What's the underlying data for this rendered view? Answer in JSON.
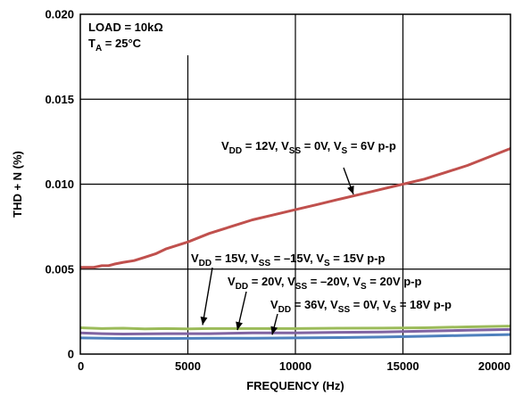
{
  "chart_data": {
    "type": "line",
    "title": "",
    "xlabel": "FREQUENCY (Hz)",
    "ylabel": "THD + N (%)",
    "xlim": [
      0,
      20000
    ],
    "ylim": [
      0,
      0.02
    ],
    "xticks": [
      0,
      5000,
      10000,
      15000,
      20000
    ],
    "xtick_labels": [
      "0",
      "5000",
      "10000",
      "15000",
      "20000"
    ],
    "yticks": [
      0,
      0.005,
      0.01,
      0.015,
      0.02
    ],
    "ytick_labels": [
      "0",
      "0.005",
      "0.010",
      "0.015",
      "0.020"
    ],
    "grid": true,
    "conditions": {
      "line1": "LOAD = 10kΩ",
      "line2_main": "T",
      "line2_sub": "A",
      "line2_tail": " = 25°C"
    },
    "colors": {
      "red": "#c0504d",
      "green": "#9bbb59",
      "purple": "#8064a2",
      "blue": "#4f81bd"
    },
    "series": [
      {
        "label_parts": [
          [
            "V",
            ""
          ],
          [
            "DD",
            "sub"
          ],
          [
            " = 12V, V",
            ""
          ],
          [
            "SS",
            "sub"
          ],
          [
            " = 0V, V",
            ""
          ],
          [
            "S",
            "sub"
          ],
          [
            " = 6V p-p",
            ""
          ]
        ],
        "color": "#c0504d",
        "x": [
          0,
          300,
          600,
          1000,
          1300,
          1600,
          2000,
          2500,
          3000,
          3500,
          4000,
          5000,
          6000,
          7000,
          8000,
          9000,
          10000,
          11000,
          12000,
          13000,
          14000,
          15000,
          16000,
          17000,
          18000,
          19000,
          20000
        ],
        "y": [
          0.0051,
          0.0051,
          0.0051,
          0.0052,
          0.0052,
          0.0053,
          0.0054,
          0.0055,
          0.0057,
          0.0059,
          0.0062,
          0.0066,
          0.0071,
          0.0075,
          0.0079,
          0.0082,
          0.0085,
          0.0088,
          0.0091,
          0.0094,
          0.0097,
          0.01,
          0.0103,
          0.0107,
          0.0111,
          0.0116,
          0.0121
        ]
      },
      {
        "label_parts": [
          [
            "V",
            ""
          ],
          [
            "DD",
            "sub"
          ],
          [
            " = 15V, V",
            ""
          ],
          [
            "SS",
            "sub"
          ],
          [
            " = –15V, V",
            ""
          ],
          [
            "S",
            "sub"
          ],
          [
            " = 15V p-p",
            ""
          ]
        ],
        "color": "#9bbb59",
        "x": [
          0,
          1000,
          2000,
          3000,
          4000,
          5000,
          6000,
          8000,
          10000,
          12000,
          14000,
          16000,
          18000,
          20000
        ],
        "y": [
          0.00155,
          0.0015,
          0.00152,
          0.00148,
          0.0015,
          0.00148,
          0.0015,
          0.0015,
          0.0015,
          0.00152,
          0.00153,
          0.00155,
          0.0016,
          0.00165
        ]
      },
      {
        "label_parts": [
          [
            "V",
            ""
          ],
          [
            "DD",
            "sub"
          ],
          [
            " = 20V, V",
            ""
          ],
          [
            "SS",
            "sub"
          ],
          [
            " = –20V, V",
            ""
          ],
          [
            "S",
            "sub"
          ],
          [
            " = 20V p-p",
            ""
          ]
        ],
        "color": "#8064a2",
        "x": [
          0,
          1000,
          2000,
          4000,
          6000,
          8000,
          10000,
          12000,
          14000,
          16000,
          18000,
          20000
        ],
        "y": [
          0.00125,
          0.0012,
          0.00118,
          0.0012,
          0.0012,
          0.00125,
          0.00125,
          0.00128,
          0.0013,
          0.00135,
          0.0014,
          0.00145
        ]
      },
      {
        "label_parts": [
          [
            "V",
            ""
          ],
          [
            "DD",
            "sub"
          ],
          [
            " = 36V, V",
            ""
          ],
          [
            "SS",
            "sub"
          ],
          [
            " = 0V, V",
            ""
          ],
          [
            "S",
            "sub"
          ],
          [
            " = 18V p-p",
            ""
          ]
        ],
        "color": "#4f81bd",
        "x": [
          0,
          2000,
          4000,
          6000,
          8000,
          10000,
          12000,
          14000,
          16000,
          18000,
          20000
        ],
        "y": [
          0.00095,
          0.00092,
          0.00092,
          0.00093,
          0.00093,
          0.00095,
          0.00097,
          0.001,
          0.00105,
          0.0011,
          0.00115
        ]
      }
    ]
  }
}
